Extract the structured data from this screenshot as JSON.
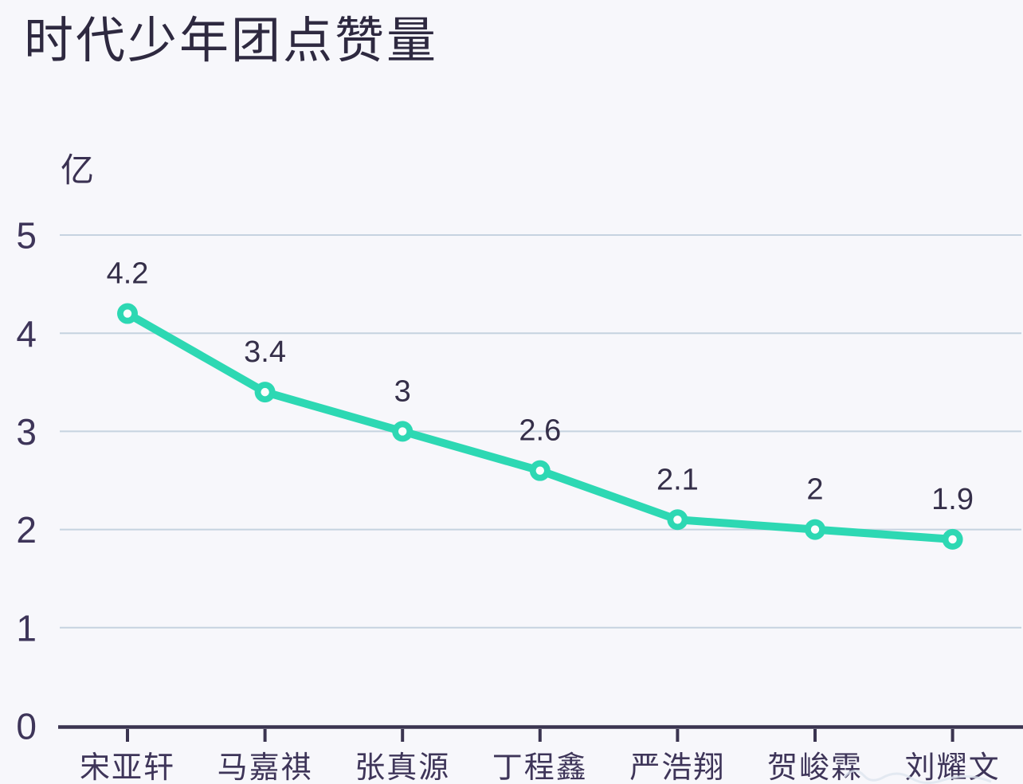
{
  "title": "时代少年团点赞量",
  "unit_label": "亿",
  "chart_data": {
    "type": "line",
    "title": "时代少年团点赞量",
    "ylabel": "亿",
    "xlabel": "",
    "categories": [
      "宋亚轩",
      "马嘉祺",
      "张真源",
      "丁程鑫",
      "严浩翔",
      "贺峻霖",
      "刘耀文"
    ],
    "values": [
      4.2,
      3.4,
      3,
      2.6,
      2.1,
      2,
      1.9
    ],
    "value_labels": [
      "4.2",
      "3.4",
      "3",
      "2.6",
      "2.1",
      "2",
      "1.9"
    ],
    "y_ticks": [
      5,
      4,
      3,
      2,
      1,
      0
    ],
    "ylim": [
      0,
      5
    ],
    "grid": true,
    "legend_position": "none",
    "colors": {
      "line": "#2dd8b3",
      "marker_ring": "#2dd8b3",
      "marker_hole": "#fbfefd",
      "grid": "#c6d3e0",
      "axis": "#3a3450",
      "tick_text": "#3e3559",
      "data_label_text": "#352f49",
      "title_text": "#2e2940",
      "background": "#f7f7fb",
      "watermark": "#dde5ef"
    }
  }
}
